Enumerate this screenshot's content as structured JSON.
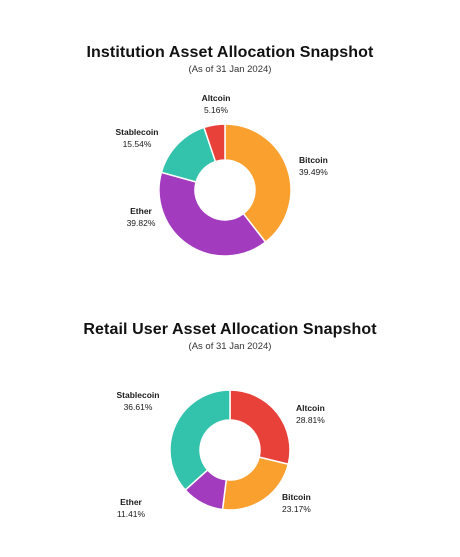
{
  "chart_data": [
    {
      "type": "pie",
      "title": "Institution Asset Allocation Snapshot",
      "subtitle": "(As of 31 Jan 2024)",
      "categories": [
        "Bitcoin",
        "Ether",
        "Stablecoin",
        "Altcoin"
      ],
      "values": [
        39.49,
        39.82,
        15.54,
        5.16
      ],
      "value_labels": [
        "39.49%",
        "39.82%",
        "15.54%",
        "5.16%"
      ],
      "colors": [
        "#F9A02F",
        "#A23BBE",
        "#33C2AC",
        "#E8413A"
      ],
      "donut": true
    },
    {
      "type": "pie",
      "title": "Retail User Asset Allocation Snapshot",
      "subtitle": "(As of 31 Jan 2024)",
      "categories": [
        "Altcoin",
        "Bitcoin",
        "Ether",
        "Stablecoin"
      ],
      "values": [
        28.81,
        23.17,
        11.41,
        36.61
      ],
      "value_labels": [
        "28.81%",
        "23.17%",
        "11.41%",
        "36.61%"
      ],
      "colors": [
        "#E8413A",
        "#F9A02F",
        "#A23BBE",
        "#33C2AC"
      ],
      "donut": true
    }
  ]
}
